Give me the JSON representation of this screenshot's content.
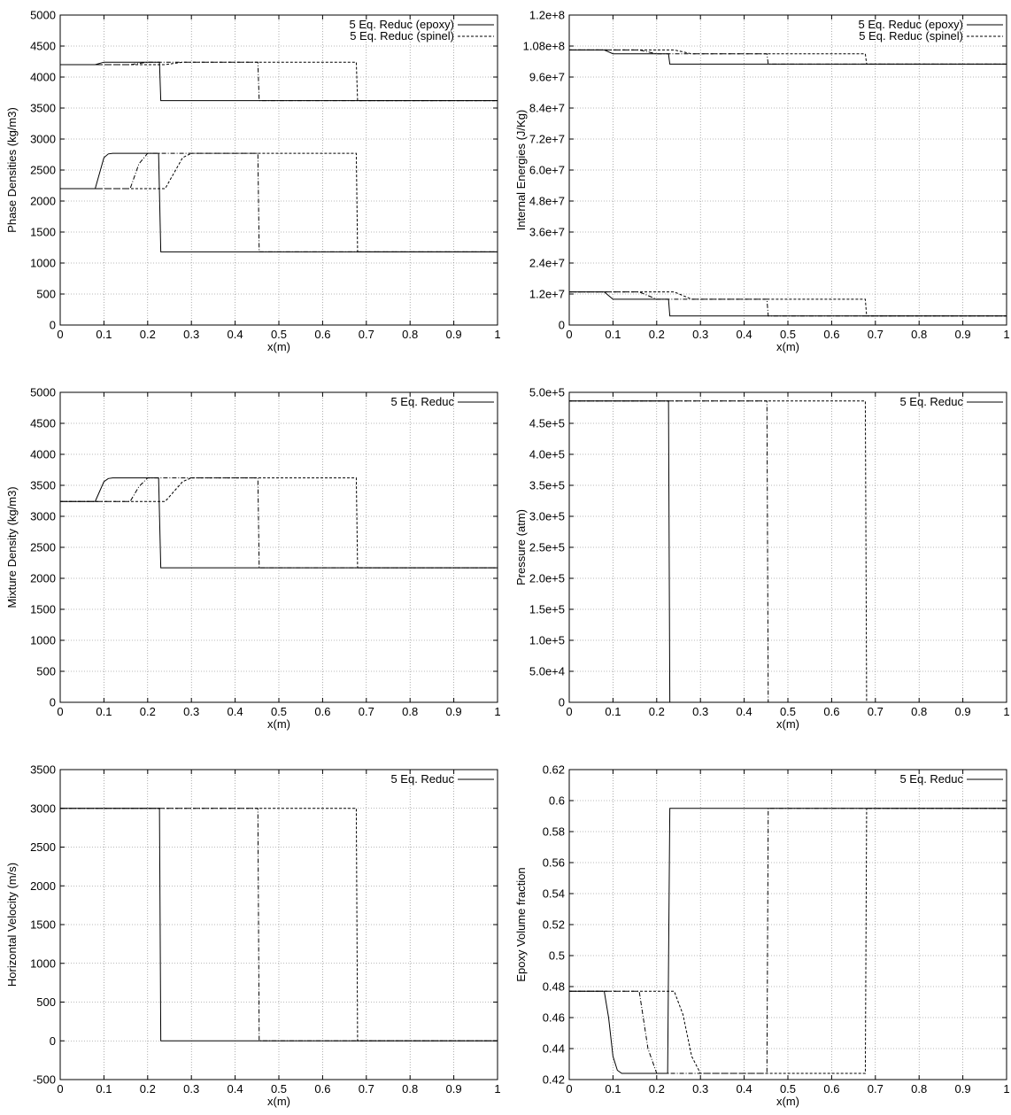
{
  "chart_data": [
    {
      "type": "line",
      "xlabel": "x(m)",
      "ylabel": "Phase Densities (kg/m3)",
      "xlim": [
        0,
        1
      ],
      "ylim": [
        0,
        5000
      ],
      "xticks": [
        0,
        0.1,
        0.2,
        0.3,
        0.4,
        0.5,
        0.6,
        0.7,
        0.8,
        0.9,
        1
      ],
      "yticks": [
        0,
        500,
        1000,
        1500,
        2000,
        2500,
        3000,
        3500,
        4000,
        4500,
        5000
      ],
      "xtick_labels": [
        "0",
        "0.1",
        "0.2",
        "0.3",
        "0.4",
        "0.5",
        "0.6",
        "0.7",
        "0.8",
        "0.9",
        "1"
      ],
      "ytick_labels": [
        "0",
        "500",
        "1000",
        "1500",
        "2000",
        "2500",
        "3000",
        "3500",
        "4000",
        "4500",
        "5000"
      ],
      "grid": true,
      "legend_position": "top-right",
      "legend": [
        {
          "label": "5 Eq. Reduc (epoxy)",
          "style": "solid"
        },
        {
          "label": "5 Eq. Reduc (spinel)",
          "style": "dashed"
        }
      ],
      "series": [
        {
          "style": "solid",
          "x": [
            0,
            0.08,
            0.09,
            0.1,
            0.11,
            0.12,
            0.22,
            0.225,
            0.23,
            1
          ],
          "y": [
            2200,
            2200,
            2450,
            2700,
            2760,
            2770,
            2770,
            2770,
            1180,
            1180
          ]
        },
        {
          "style": "dashdot",
          "x": [
            0,
            0.16,
            0.18,
            0.2,
            0.45,
            0.452,
            0.455,
            1
          ],
          "y": [
            2200,
            2200,
            2600,
            2770,
            2770,
            2770,
            1180,
            1180
          ]
        },
        {
          "style": "dashed",
          "x": [
            0,
            0.24,
            0.26,
            0.28,
            0.3,
            0.675,
            0.677,
            0.68,
            1
          ],
          "y": [
            2200,
            2200,
            2450,
            2700,
            2770,
            2770,
            2770,
            1180,
            1180
          ]
        },
        {
          "style": "solid",
          "x": [
            0,
            0.08,
            0.1,
            0.225,
            0.227,
            0.23,
            1
          ],
          "y": [
            4200,
            4200,
            4240,
            4240,
            4240,
            3620,
            3620
          ]
        },
        {
          "style": "dashdot",
          "x": [
            0,
            0.16,
            0.2,
            0.45,
            0.452,
            0.455,
            1
          ],
          "y": [
            4200,
            4200,
            4240,
            4240,
            4240,
            3620,
            3620
          ]
        },
        {
          "style": "dashed",
          "x": [
            0,
            0.24,
            0.28,
            0.675,
            0.677,
            0.68,
            1
          ],
          "y": [
            4200,
            4200,
            4240,
            4240,
            4240,
            3620,
            3620
          ]
        }
      ]
    },
    {
      "type": "line",
      "xlabel": "x(m)",
      "ylabel": "Internal Energies (J/Kg)",
      "xlim": [
        0,
        1
      ],
      "ylim": [
        0,
        120000000
      ],
      "xticks": [
        0,
        0.1,
        0.2,
        0.3,
        0.4,
        0.5,
        0.6,
        0.7,
        0.8,
        0.9,
        1
      ],
      "yticks": [
        0,
        12000000,
        24000000,
        36000000,
        48000000,
        60000000,
        72000000,
        84000000,
        96000000,
        108000000,
        120000000
      ],
      "xtick_labels": [
        "0",
        "0.1",
        "0.2",
        "0.3",
        "0.4",
        "0.5",
        "0.6",
        "0.7",
        "0.8",
        "0.9",
        "1"
      ],
      "ytick_labels": [
        "0",
        "1.2e+7",
        "2.4e+7",
        "3.6e+7",
        "4.8e+7",
        "6.0e+7",
        "7.2e+7",
        "8.4e+7",
        "9.6e+7",
        "1.08e+8",
        "1.2e+8"
      ],
      "grid": true,
      "legend_position": "top-right",
      "legend": [
        {
          "label": "5 Eq. Reduc (epoxy)",
          "style": "solid"
        },
        {
          "label": "5 Eq. Reduc (spinel)",
          "style": "dashed"
        }
      ],
      "series": [
        {
          "style": "solid",
          "x": [
            0,
            0.08,
            0.1,
            0.225,
            0.227,
            0.23,
            1
          ],
          "y": [
            106500000,
            106500000,
            105000000,
            105000000,
            105000000,
            101000000,
            101000000
          ]
        },
        {
          "style": "dashdot",
          "x": [
            0,
            0.16,
            0.2,
            0.45,
            0.452,
            0.455,
            1
          ],
          "y": [
            106500000,
            106500000,
            105000000,
            105000000,
            105000000,
            101000000,
            101000000
          ]
        },
        {
          "style": "dashed",
          "x": [
            0,
            0.24,
            0.28,
            0.675,
            0.677,
            0.68,
            1
          ],
          "y": [
            106500000,
            106500000,
            105000000,
            105000000,
            105000000,
            101000000,
            101000000
          ]
        },
        {
          "style": "solid",
          "x": [
            0,
            0.08,
            0.1,
            0.225,
            0.227,
            0.23,
            1
          ],
          "y": [
            12800000,
            12800000,
            10000000,
            10000000,
            10000000,
            3500000,
            3500000
          ]
        },
        {
          "style": "dashdot",
          "x": [
            0,
            0.16,
            0.2,
            0.45,
            0.452,
            0.455,
            1
          ],
          "y": [
            12800000,
            12800000,
            10000000,
            10000000,
            10000000,
            3500000,
            3500000
          ]
        },
        {
          "style": "dashed",
          "x": [
            0,
            0.24,
            0.28,
            0.675,
            0.677,
            0.68,
            1
          ],
          "y": [
            12800000,
            12800000,
            10000000,
            10000000,
            10000000,
            3500000,
            3500000
          ]
        }
      ]
    },
    {
      "type": "line",
      "xlabel": "x(m)",
      "ylabel": "Mixture Density (kg/m3)",
      "xlim": [
        0,
        1
      ],
      "ylim": [
        0,
        5000
      ],
      "xticks": [
        0,
        0.1,
        0.2,
        0.3,
        0.4,
        0.5,
        0.6,
        0.7,
        0.8,
        0.9,
        1
      ],
      "yticks": [
        0,
        500,
        1000,
        1500,
        2000,
        2500,
        3000,
        3500,
        4000,
        4500,
        5000
      ],
      "xtick_labels": [
        "0",
        "0.1",
        "0.2",
        "0.3",
        "0.4",
        "0.5",
        "0.6",
        "0.7",
        "0.8",
        "0.9",
        "1"
      ],
      "ytick_labels": [
        "0",
        "500",
        "1000",
        "1500",
        "2000",
        "2500",
        "3000",
        "3500",
        "4000",
        "4500",
        "5000"
      ],
      "grid": true,
      "legend_position": "top-right",
      "legend": [
        {
          "label": "5 Eq. Reduc",
          "style": "solid"
        }
      ],
      "series": [
        {
          "style": "solid",
          "x": [
            0,
            0.08,
            0.09,
            0.1,
            0.11,
            0.12,
            0.22,
            0.225,
            0.23,
            1
          ],
          "y": [
            3240,
            3240,
            3400,
            3560,
            3610,
            3620,
            3620,
            3620,
            2170,
            2170
          ]
        },
        {
          "style": "dashdot",
          "x": [
            0,
            0.16,
            0.18,
            0.2,
            0.45,
            0.452,
            0.455,
            1
          ],
          "y": [
            3240,
            3240,
            3480,
            3620,
            3620,
            3620,
            2170,
            2170
          ]
        },
        {
          "style": "dashed",
          "x": [
            0,
            0.24,
            0.26,
            0.28,
            0.3,
            0.675,
            0.677,
            0.68,
            1
          ],
          "y": [
            3240,
            3240,
            3400,
            3560,
            3620,
            3620,
            3620,
            2170,
            2170
          ]
        }
      ]
    },
    {
      "type": "line",
      "xlabel": "x(m)",
      "ylabel": "Pressure (atm)",
      "xlim": [
        0,
        1
      ],
      "ylim": [
        0,
        500000
      ],
      "xticks": [
        0,
        0.1,
        0.2,
        0.3,
        0.4,
        0.5,
        0.6,
        0.7,
        0.8,
        0.9,
        1
      ],
      "yticks": [
        0,
        50000,
        100000,
        150000,
        200000,
        250000,
        300000,
        350000,
        400000,
        450000,
        500000
      ],
      "xtick_labels": [
        "0",
        "0.1",
        "0.2",
        "0.3",
        "0.4",
        "0.5",
        "0.6",
        "0.7",
        "0.8",
        "0.9",
        "1"
      ],
      "ytick_labels": [
        "0",
        "5.0e+4",
        "1.0e+5",
        "1.5e+5",
        "2.0e+5",
        "2.5e+5",
        "3.0e+5",
        "3.5e+5",
        "4.0e+5",
        "4.5e+5",
        "5.0e+5"
      ],
      "grid": true,
      "legend_position": "top-right",
      "legend": [
        {
          "label": "5 Eq. Reduc",
          "style": "solid"
        }
      ],
      "series": [
        {
          "style": "solid",
          "x": [
            0,
            0.225,
            0.227,
            0.23,
            1
          ],
          "y": [
            486000,
            486000,
            486000,
            0,
            0
          ]
        },
        {
          "style": "dashdot",
          "x": [
            0,
            0.45,
            0.452,
            0.455,
            1
          ],
          "y": [
            486000,
            486000,
            486000,
            0,
            0
          ]
        },
        {
          "style": "dashed",
          "x": [
            0,
            0.675,
            0.677,
            0.68,
            1
          ],
          "y": [
            486000,
            486000,
            486000,
            0,
            0
          ]
        }
      ]
    },
    {
      "type": "line",
      "xlabel": "x(m)",
      "ylabel": "Horizontal Velocity (m/s)",
      "xlim": [
        0,
        1
      ],
      "ylim": [
        -500,
        3500
      ],
      "xticks": [
        0,
        0.1,
        0.2,
        0.3,
        0.4,
        0.5,
        0.6,
        0.7,
        0.8,
        0.9,
        1
      ],
      "yticks": [
        -500,
        0,
        500,
        1000,
        1500,
        2000,
        2500,
        3000,
        3500
      ],
      "xtick_labels": [
        "0",
        "0.1",
        "0.2",
        "0.3",
        "0.4",
        "0.5",
        "0.6",
        "0.7",
        "0.8",
        "0.9",
        "1"
      ],
      "ytick_labels": [
        "-500",
        "0",
        "500",
        "1000",
        "1500",
        "2000",
        "2500",
        "3000",
        "3500"
      ],
      "grid": true,
      "legend_position": "top-right",
      "legend": [
        {
          "label": "5 Eq. Reduc",
          "style": "solid"
        }
      ],
      "series": [
        {
          "style": "solid",
          "x": [
            0,
            0.225,
            0.227,
            0.23,
            1
          ],
          "y": [
            3000,
            3000,
            3000,
            0,
            0
          ]
        },
        {
          "style": "dashdot",
          "x": [
            0,
            0.45,
            0.452,
            0.455,
            1
          ],
          "y": [
            3000,
            3000,
            3000,
            0,
            0
          ]
        },
        {
          "style": "dashed",
          "x": [
            0,
            0.675,
            0.677,
            0.68,
            1
          ],
          "y": [
            3000,
            3000,
            3000,
            0,
            0
          ]
        }
      ]
    },
    {
      "type": "line",
      "xlabel": "x(m)",
      "ylabel": "Epoxy Volume fraction",
      "xlim": [
        0,
        1
      ],
      "ylim": [
        0.42,
        0.62
      ],
      "xticks": [
        0,
        0.1,
        0.2,
        0.3,
        0.4,
        0.5,
        0.6,
        0.7,
        0.8,
        0.9,
        1
      ],
      "yticks": [
        0.42,
        0.44,
        0.46,
        0.48,
        0.5,
        0.52,
        0.54,
        0.56,
        0.58,
        0.6,
        0.62
      ],
      "xtick_labels": [
        "0",
        "0.1",
        "0.2",
        "0.3",
        "0.4",
        "0.5",
        "0.6",
        "0.7",
        "0.8",
        "0.9",
        "1"
      ],
      "ytick_labels": [
        "0.42",
        "0.44",
        "0.46",
        "0.48",
        "0.5",
        "0.52",
        "0.54",
        "0.56",
        "0.58",
        "0.6",
        "0.62"
      ],
      "grid": true,
      "legend_position": "top-right",
      "legend": [
        {
          "label": "5 Eq. Reduc",
          "style": "solid"
        }
      ],
      "series": [
        {
          "style": "solid",
          "x": [
            0,
            0.08,
            0.09,
            0.1,
            0.11,
            0.12,
            0.22,
            0.225,
            0.23,
            1
          ],
          "y": [
            0.477,
            0.477,
            0.46,
            0.435,
            0.426,
            0.424,
            0.424,
            0.424,
            0.595,
            0.595
          ]
        },
        {
          "style": "dashdot",
          "x": [
            0,
            0.16,
            0.18,
            0.2,
            0.45,
            0.452,
            0.455,
            1
          ],
          "y": [
            0.477,
            0.477,
            0.44,
            0.424,
            0.424,
            0.424,
            0.595,
            0.595
          ]
        },
        {
          "style": "dashed",
          "x": [
            0,
            0.24,
            0.26,
            0.28,
            0.3,
            0.675,
            0.677,
            0.68,
            1
          ],
          "y": [
            0.477,
            0.477,
            0.462,
            0.435,
            0.424,
            0.424,
            0.424,
            0.595,
            0.595
          ]
        }
      ]
    }
  ]
}
